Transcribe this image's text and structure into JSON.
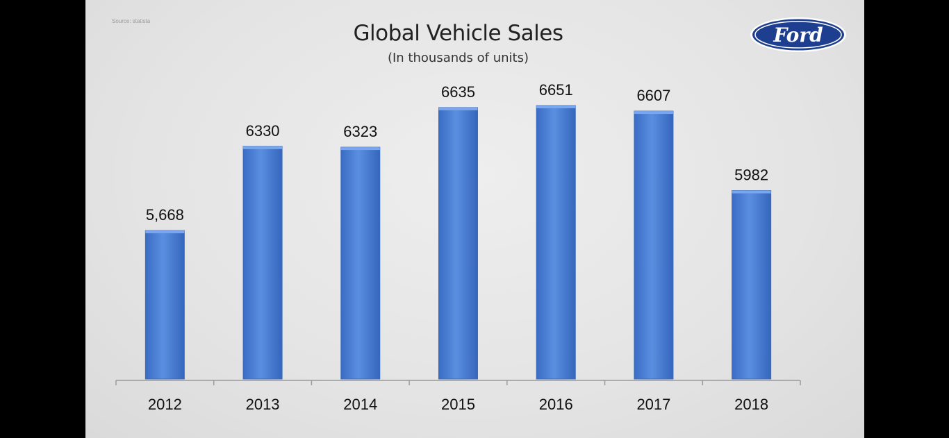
{
  "slide": {
    "source": "Source: statista",
    "logo_text": "Ford",
    "logo_icon": "ford-oval-logo-icon"
  },
  "colors": {
    "bar": "#4a80d4",
    "bar_edge": "#3a6abb",
    "axis": "#9a9a9a",
    "logo_blue": "#1e3f8f"
  },
  "chart_data": {
    "type": "bar",
    "title": "Global Vehicle Sales",
    "subtitle": "(In thousands of units)",
    "categories": [
      "2012",
      "2013",
      "2014",
      "2015",
      "2016",
      "2017",
      "2018"
    ],
    "values": [
      5668,
      6330,
      6323,
      6635,
      6651,
      6607,
      5982
    ],
    "data_labels": [
      "5,668",
      "6330",
      "6323",
      "6635",
      "6651",
      "6607",
      "5982"
    ],
    "xlabel": "",
    "ylabel": "",
    "ylim": [
      4500,
      6700
    ],
    "grid": false,
    "legend": "none"
  }
}
